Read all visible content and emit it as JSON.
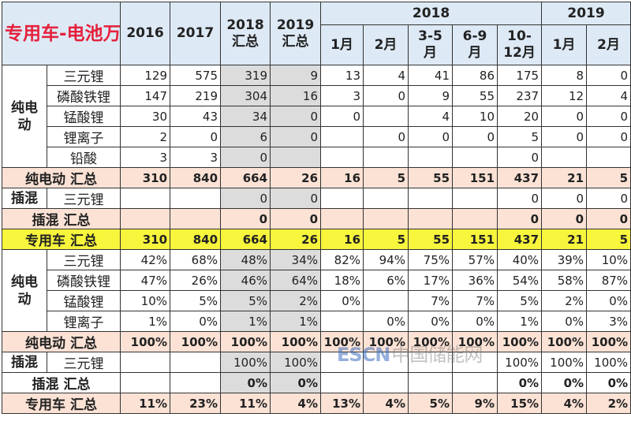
{
  "header": {
    "title": "专用车-电池万度",
    "years": [
      [
        "2016"
      ],
      [
        "2017"
      ],
      [
        "2018",
        "汇总"
      ],
      [
        "2019",
        "汇总"
      ]
    ],
    "group_2018": "2018",
    "group_2019": "2019",
    "months_2018": [
      [
        "1月"
      ],
      [
        "2月"
      ],
      [
        "3-5",
        "月"
      ],
      [
        "6-9",
        "月"
      ],
      [
        "10-",
        "12月"
      ]
    ],
    "months_2019": [
      [
        "1月"
      ],
      [
        "2月"
      ]
    ]
  },
  "rows": [
    {
      "group": "纯电动",
      "group_span": 5,
      "label": "三元锂",
      "type": "normal",
      "values": [
        "129",
        "575",
        "319",
        "9",
        "13",
        "4",
        "41",
        "86",
        "175",
        "8",
        "0"
      ]
    },
    {
      "label": "磷酸铁锂",
      "type": "normal",
      "values": [
        "147",
        "219",
        "304",
        "16",
        "3",
        "0",
        "9",
        "55",
        "237",
        "12",
        "4"
      ]
    },
    {
      "label": "锰酸锂",
      "type": "normal",
      "values": [
        "30",
        "43",
        "34",
        "0",
        "0",
        "",
        "4",
        "10",
        "20",
        "0",
        "0"
      ]
    },
    {
      "label": "锂离子",
      "type": "normal",
      "values": [
        "2",
        "0",
        "6",
        "0",
        "",
        "0",
        "0",
        "0",
        "5",
        "0",
        "0"
      ]
    },
    {
      "label": "铅酸",
      "type": "normal",
      "values": [
        "3",
        "3",
        "0",
        "",
        "",
        "",
        "",
        "",
        "0",
        "",
        ""
      ]
    },
    {
      "full_label": "纯电动 汇总",
      "type": "pink",
      "values": [
        "310",
        "840",
        "664",
        "26",
        "16",
        "5",
        "55",
        "151",
        "437",
        "21",
        "5"
      ]
    },
    {
      "group": "插混",
      "group_span": 1,
      "label": "三元锂",
      "type": "normal",
      "values": [
        "",
        "",
        "0",
        "0",
        "",
        "",
        "",
        "",
        "0",
        "0",
        "0"
      ]
    },
    {
      "full_label": "插混 汇总",
      "type": "pink",
      "values": [
        "",
        "",
        "0",
        "0",
        "",
        "",
        "",
        "",
        "0",
        "0",
        "0"
      ]
    },
    {
      "full_label": "专用车 汇总",
      "type": "yellow",
      "values": [
        "310",
        "840",
        "664",
        "26",
        "16",
        "5",
        "55",
        "151",
        "437",
        "21",
        "5"
      ]
    },
    {
      "group": "纯电动",
      "group_span": 4,
      "label": "三元锂",
      "type": "normal",
      "values": [
        "42%",
        "68%",
        "48%",
        "34%",
        "82%",
        "94%",
        "75%",
        "57%",
        "40%",
        "39%",
        "10%"
      ]
    },
    {
      "label": "磷酸铁锂",
      "type": "normal",
      "values": [
        "47%",
        "26%",
        "46%",
        "64%",
        "18%",
        "6%",
        "17%",
        "36%",
        "54%",
        "58%",
        "87%"
      ]
    },
    {
      "label": "锰酸锂",
      "type": "normal",
      "values": [
        "10%",
        "5%",
        "5%",
        "2%",
        "0%",
        "",
        "7%",
        "7%",
        "5%",
        "2%",
        "0%"
      ]
    },
    {
      "label": "锂离子",
      "type": "normal",
      "values": [
        "1%",
        "0%",
        "1%",
        "1%",
        "",
        "0%",
        "0%",
        "0%",
        "1%",
        "0%",
        "3%"
      ]
    },
    {
      "full_label": "纯电动 汇总",
      "type": "pink",
      "values": [
        "100%",
        "100%",
        "100%",
        "100%",
        "100%",
        "100%",
        "100%",
        "100%",
        "100%",
        "100%",
        "100%"
      ]
    },
    {
      "group": "插混",
      "group_span": 1,
      "label": "三元锂",
      "type": "normal",
      "values": [
        "",
        "",
        "100%",
        "100%",
        "",
        "",
        "",
        "",
        "100%",
        "100%",
        "100%"
      ]
    },
    {
      "full_label": "插混 汇总",
      "type": "bold",
      "values": [
        "",
        "",
        "0%",
        "0%",
        "",
        "",
        "",
        "",
        "0%",
        "0%",
        "0%"
      ]
    },
    {
      "full_label": "专用车 汇总",
      "type": "pink",
      "values": [
        "11%",
        "23%",
        "11%",
        "4%",
        "13%",
        "4%",
        "5%",
        "9%",
        "15%",
        "4%",
        "2%"
      ]
    }
  ],
  "watermark": {
    "latin": "ESCN",
    "cn": "中国储能网"
  },
  "colors": {
    "title": "#e6203c",
    "header_bg": "#dde9f5",
    "subtotal_bg": "#fbe2d5",
    "total_bg": "#f7f53c",
    "summary_col_bg": "#dcdcdc"
  }
}
